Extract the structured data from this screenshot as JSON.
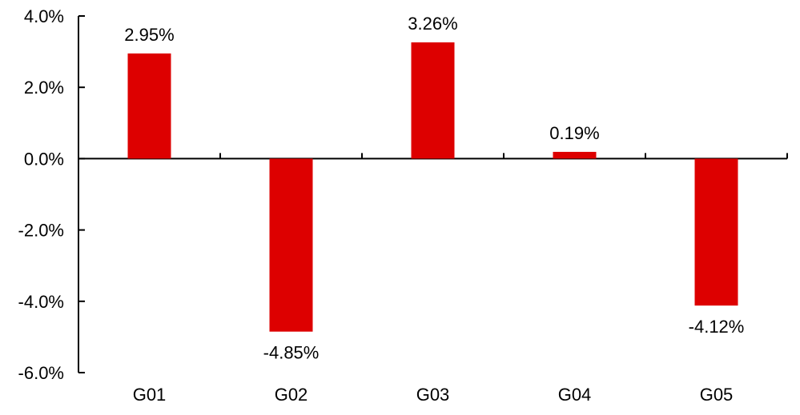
{
  "chart_data": {
    "type": "bar",
    "categories": [
      "G01",
      "G02",
      "G03",
      "G04",
      "G05"
    ],
    "values": [
      2.95,
      -4.85,
      3.26,
      0.19,
      -4.12
    ],
    "data_labels": [
      "2.95%",
      "-4.85%",
      "3.26%",
      "0.19%",
      "-4.12%"
    ],
    "title": "",
    "xlabel": "",
    "ylabel": "",
    "ylim": [
      -6.0,
      4.0
    ],
    "ytick_values": [
      4.0,
      2.0,
      0.0,
      -2.0,
      -4.0,
      -6.0
    ],
    "ytick_labels": [
      "4.0%",
      "2.0%",
      "0.0%",
      "-2.0%",
      "-4.0%",
      "-6.0%"
    ],
    "grid": false,
    "legend_position": "none",
    "bar_color": "#dd0000",
    "axis_color": "#000000",
    "text_color": "#000000",
    "background_color": "#ffffff"
  }
}
